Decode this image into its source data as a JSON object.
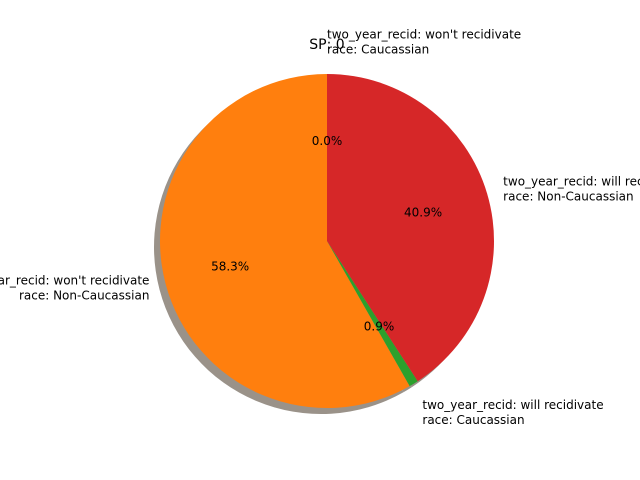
{
  "chart_data": {
    "type": "pie",
    "title": "SP: 0",
    "start_angle_deg": 90,
    "direction": "counterclockwise",
    "shadow": true,
    "slices": [
      {
        "label_lines": [
          "two_year_recid: won't recidivate",
          "race: Caucassian"
        ],
        "value": 0.0,
        "pct_label": "0.0%",
        "color": "#1f77b4"
      },
      {
        "label_lines": [
          "two_year_recid: won't recidivate",
          "race: Non-Caucassian"
        ],
        "value": 58.3,
        "pct_label": "58.3%",
        "color": "#ff7f0e"
      },
      {
        "label_lines": [
          "two_year_recid: will recidivate",
          "race: Caucassian"
        ],
        "value": 0.9,
        "pct_label": "0.9%",
        "color": "#2ca02c"
      },
      {
        "label_lines": [
          "two_year_recid: will recidivate",
          "race: Non-Caucassian"
        ],
        "value": 40.9,
        "pct_label": "40.9%",
        "color": "#d62728"
      }
    ]
  }
}
